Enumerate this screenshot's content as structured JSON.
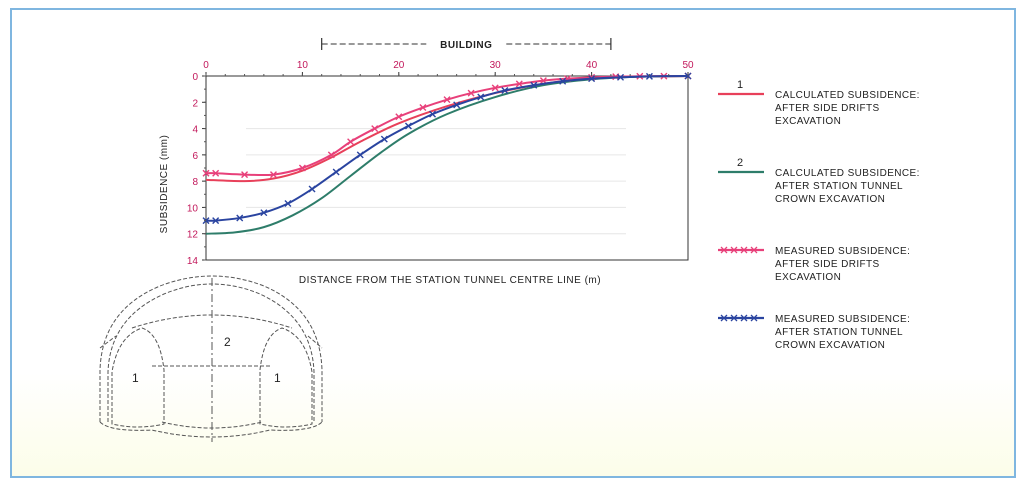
{
  "chart_data": {
    "type": "line",
    "xlabel": "DISTANCE FROM THE STATION TUNNEL CENTRE LINE (m)",
    "ylabel": "SUBSIDENCE (mm)",
    "xlim": [
      0,
      50
    ],
    "ylim": [
      0,
      14
    ],
    "y_inverted": true,
    "x_ticks": [
      "0",
      "10",
      "20",
      "30",
      "40",
      "50"
    ],
    "y_ticks": [
      "0",
      "2",
      "4",
      "6",
      "8",
      "10",
      "12",
      "14"
    ],
    "building_label": "BUILDING",
    "building_extent": [
      12,
      42
    ],
    "series": [
      {
        "key": "calc1",
        "marker_label": "1",
        "name": "CALCULATED SUBSIDENCE: AFTER SIDE DRIFTS EXCAVATION",
        "name_lines": [
          "CALCULATED SUBSIDENCE:",
          "AFTER SIDE DRIFTS",
          "EXCAVATION"
        ],
        "color": "#e8405a",
        "style": "line",
        "x": [
          0,
          4,
          7,
          10,
          13,
          16,
          20,
          25,
          30,
          35,
          40,
          45,
          50
        ],
        "y": [
          7.9,
          8.0,
          7.8,
          7.2,
          6.2,
          5.0,
          3.6,
          2.3,
          1.3,
          0.6,
          0.2,
          0.05,
          0
        ]
      },
      {
        "key": "calc2",
        "marker_label": "2",
        "name": "CALCULATED SUBSIDENCE: AFTER STATION TUNNEL CROWN EXCAVATION",
        "name_lines": [
          "CALCULATED SUBSIDENCE:",
          "AFTER STATION TUNNEL",
          "CROWN EXCAVATION"
        ],
        "color": "#2e7d6a",
        "style": "line",
        "x": [
          0,
          3,
          6,
          9,
          12,
          15,
          18,
          21,
          25,
          30,
          35,
          40,
          45,
          50
        ],
        "y": [
          12.0,
          11.9,
          11.5,
          10.6,
          9.3,
          7.6,
          5.9,
          4.4,
          2.9,
          1.6,
          0.7,
          0.25,
          0.05,
          0
        ]
      },
      {
        "key": "meas1",
        "marker_label": "",
        "name": "MEASURED SUBSIDENCE: AFTER SIDE DRIFTS EXCAVATION",
        "name_lines": [
          "MEASURED SUBSIDENCE:",
          "AFTER SIDE DRIFTS",
          "EXCAVATION"
        ],
        "color": "#e8407a",
        "style": "marked",
        "x": [
          0,
          1,
          4,
          7,
          10,
          13,
          15,
          17.5,
          20,
          22.5,
          25,
          27.5,
          30,
          32.5,
          35,
          37.5,
          40,
          42.5,
          45,
          47.5,
          50
        ],
        "y": [
          7.4,
          7.4,
          7.5,
          7.5,
          7.0,
          6.0,
          5.0,
          4.0,
          3.1,
          2.4,
          1.8,
          1.3,
          0.9,
          0.6,
          0.35,
          0.2,
          0.1,
          0.05,
          0.02,
          0.01,
          0
        ]
      },
      {
        "key": "meas2",
        "marker_label": "",
        "name": "MEASURED SUBSIDENCE: AFTER STATION TUNNEL CROWN EXCAVATION",
        "name_lines": [
          "MEASURED SUBSIDENCE:",
          "AFTER STATION TUNNEL",
          "CROWN EXCAVATION"
        ],
        "color": "#2a44a0",
        "style": "marked",
        "x": [
          0,
          1,
          3.5,
          6,
          8.5,
          11,
          13.5,
          16,
          18.5,
          21,
          23.5,
          26,
          28.5,
          31,
          34,
          37,
          40,
          43,
          46,
          50
        ],
        "y": [
          11.0,
          11.0,
          10.8,
          10.4,
          9.7,
          8.6,
          7.3,
          6.0,
          4.8,
          3.8,
          2.9,
          2.2,
          1.6,
          1.1,
          0.7,
          0.4,
          0.2,
          0.1,
          0.03,
          0
        ]
      }
    ]
  },
  "cross_section": {
    "crown_label": "2",
    "left_drift_label": "1",
    "right_drift_label": "1"
  }
}
